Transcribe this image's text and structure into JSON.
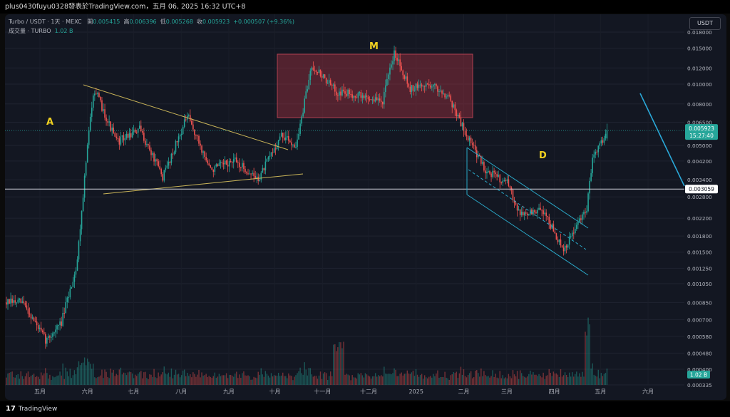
{
  "header": {
    "publisher_line": "plus0430fuyu0328發表於TradingView.com，五月 06, 2025 16:32 UTC+8"
  },
  "legend": {
    "symbol": "Turbo / USDT · 1天 · MEXC",
    "open_label": "開",
    "open": "0.005415",
    "high_label": "高",
    "high": "0.006396",
    "low_label": "低",
    "low": "0.005268",
    "close_label": "收",
    "close": "0.005923",
    "change": "+0.000507 (+9.36%)",
    "volume_label": "成交量 · TURBO",
    "volume": "1.02 B"
  },
  "currency_button": "USDT",
  "footer": {
    "brand": "TradingView"
  },
  "colors": {
    "up": "#26a69a",
    "down": "#ef5350",
    "background": "#131722",
    "trendline": "#c9b458",
    "channel": "#2aa8c8",
    "box": "#a03040",
    "annotation": "#f0d020"
  },
  "chart_data": {
    "type": "candlestick",
    "scale": "log",
    "y_ticks": [
      "0.018000",
      "0.015000",
      "0.012000",
      "0.010000",
      "0.008000",
      "0.006500",
      "0.005000",
      "0.004200",
      "0.003400",
      "0.002800",
      "0.002200",
      "0.001800",
      "0.001500",
      "0.001250",
      "0.001050",
      "0.000850",
      "0.000700",
      "0.000580",
      "0.000480",
      "0.000400",
      "0.000335"
    ],
    "x_ticks": [
      "五月",
      "六月",
      "七月",
      "八月",
      "九月",
      "十月",
      "十一月",
      "十二月",
      "2025",
      "二月",
      "三月",
      "四月",
      "五月",
      "六月"
    ],
    "price_label": "0.005923",
    "countdown": "15:27:40",
    "level_label": "0.003059",
    "volume_label": "1.02 B",
    "annotations": [
      "A",
      "M",
      "D"
    ],
    "approx_close_path": [
      {
        "date": "2024-04-20",
        "close": 0.00085
      },
      {
        "date": "2024-05-05",
        "close": 0.00055
      },
      {
        "date": "2024-05-15",
        "close": 0.00068
      },
      {
        "date": "2024-05-25",
        "close": 0.0013
      },
      {
        "date": "2024-06-01",
        "close": 0.005
      },
      {
        "date": "2024-06-05",
        "close": 0.0096
      },
      {
        "date": "2024-06-20",
        "close": 0.0052
      },
      {
        "date": "2024-07-05",
        "close": 0.006
      },
      {
        "date": "2024-07-20",
        "close": 0.0035
      },
      {
        "date": "2024-08-05",
        "close": 0.007
      },
      {
        "date": "2024-08-20",
        "close": 0.0038
      },
      {
        "date": "2024-09-05",
        "close": 0.0042
      },
      {
        "date": "2024-09-20",
        "close": 0.0034
      },
      {
        "date": "2024-10-05",
        "close": 0.0056
      },
      {
        "date": "2024-10-15",
        "close": 0.005
      },
      {
        "date": "2024-10-25",
        "close": 0.0125
      },
      {
        "date": "2024-11-10",
        "close": 0.0092
      },
      {
        "date": "2024-11-25",
        "close": 0.0088
      },
      {
        "date": "2024-12-10",
        "close": 0.0082
      },
      {
        "date": "2024-12-18",
        "close": 0.0145
      },
      {
        "date": "2024-12-28",
        "close": 0.0095
      },
      {
        "date": "2025-01-10",
        "close": 0.01
      },
      {
        "date": "2025-01-22",
        "close": 0.0088
      },
      {
        "date": "2025-02-01",
        "close": 0.006
      },
      {
        "date": "2025-02-15",
        "close": 0.0038
      },
      {
        "date": "2025-03-01",
        "close": 0.0033
      },
      {
        "date": "2025-03-10",
        "close": 0.0023
      },
      {
        "date": "2025-03-25",
        "close": 0.0024
      },
      {
        "date": "2025-04-07",
        "close": 0.0015
      },
      {
        "date": "2025-04-15",
        "close": 0.002
      },
      {
        "date": "2025-04-22",
        "close": 0.0024
      },
      {
        "date": "2025-04-26",
        "close": 0.0045
      },
      {
        "date": "2025-05-06",
        "close": 0.005923
      }
    ]
  }
}
